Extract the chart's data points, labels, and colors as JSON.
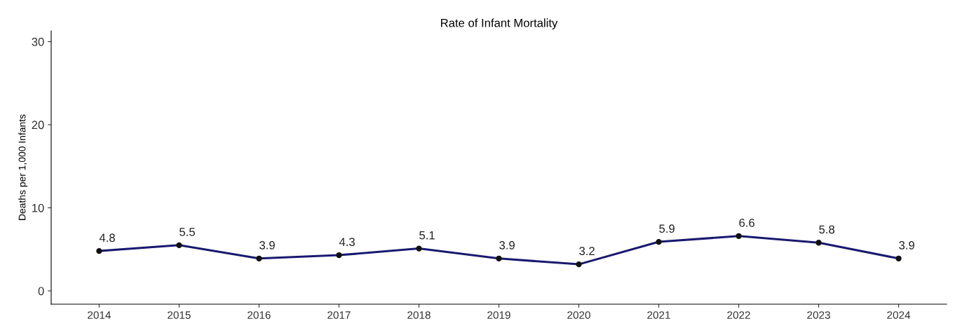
{
  "chart_data": {
    "type": "line",
    "title": "Rate of Infant Mortality",
    "ylabel": "Deaths per 1,000 Infants",
    "categories": [
      "2014",
      "2015",
      "2016",
      "2017",
      "2018",
      "2019",
      "2020",
      "2021",
      "2022",
      "2023",
      "2024"
    ],
    "series": [
      {
        "color": "#191970",
        "values": [
          4.8,
          5.5,
          3.9,
          4.3,
          5.1,
          3.9,
          3.2,
          5.9,
          6.6,
          5.8,
          3.9
        ]
      }
    ],
    "ylim": [
      -1.6,
      31.3
    ],
    "yticks": [
      0,
      10,
      20,
      30
    ],
    "data_labels": true,
    "marker": "circle",
    "line_style": "solid",
    "grid": false,
    "legend": false
  }
}
